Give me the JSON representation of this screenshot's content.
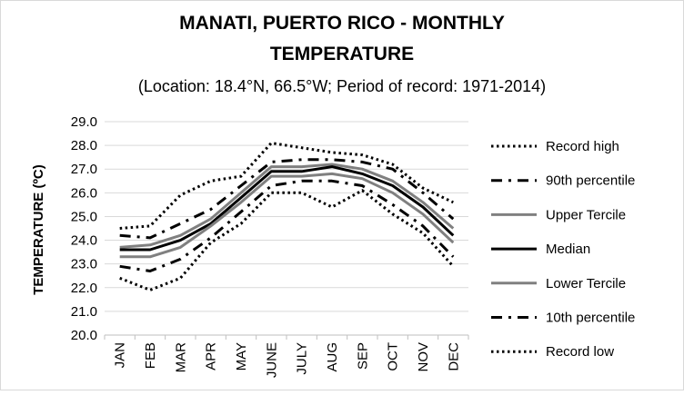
{
  "chart_data": {
    "type": "line",
    "title_line1": "MANATI, PUERTO RICO - MONTHLY",
    "title_line2": "TEMPERATURE",
    "subtitle": "(Location: 18.4°N, 66.5°W; Period of record: 1971-2014)",
    "ylabel": "TEMPERATURE (ºC)",
    "xlabel": "",
    "categories": [
      "JAN",
      "FEB",
      "MAR",
      "APR",
      "MAY",
      "JUNE",
      "JULY",
      "AUG",
      "SEP",
      "OCT",
      "NOV",
      "DEC"
    ],
    "ylim": [
      20.0,
      29.0
    ],
    "yticks": [
      "20.0",
      "21.0",
      "22.0",
      "23.0",
      "24.0",
      "25.0",
      "26.0",
      "27.0",
      "28.0",
      "29.0"
    ],
    "grid": true,
    "legend_position": "right",
    "series": [
      {
        "name": "Record high",
        "style": "dotted",
        "color": "#000000",
        "values": [
          24.5,
          24.6,
          25.9,
          26.5,
          26.7,
          28.1,
          27.9,
          27.7,
          27.6,
          27.2,
          26.2,
          25.6
        ]
      },
      {
        "name": "90th percentile",
        "style": "dashdot",
        "color": "#000000",
        "values": [
          24.2,
          24.1,
          24.7,
          25.3,
          26.3,
          27.3,
          27.4,
          27.4,
          27.3,
          27.0,
          26.0,
          24.9
        ]
      },
      {
        "name": "Upper Tercile",
        "style": "solid",
        "color": "#808080",
        "values": [
          23.7,
          23.8,
          24.2,
          24.9,
          26.0,
          27.1,
          27.1,
          27.2,
          27.0,
          26.5,
          25.6,
          24.5
        ]
      },
      {
        "name": "Median",
        "style": "solid",
        "color": "#000000",
        "values": [
          23.6,
          23.6,
          24.0,
          24.7,
          25.8,
          26.9,
          26.9,
          27.1,
          26.8,
          26.3,
          25.4,
          24.2
        ]
      },
      {
        "name": "Lower Tercile",
        "style": "solid",
        "color": "#808080",
        "values": [
          23.3,
          23.3,
          23.7,
          24.6,
          25.6,
          26.7,
          26.7,
          26.8,
          26.6,
          26.0,
          25.1,
          23.9
        ]
      },
      {
        "name": "10th percentile",
        "style": "dashdot",
        "color": "#000000",
        "values": [
          22.9,
          22.7,
          23.2,
          24.1,
          25.2,
          26.3,
          26.5,
          26.5,
          26.3,
          25.5,
          24.6,
          23.3
        ]
      },
      {
        "name": "Record low",
        "style": "dotted",
        "color": "#000000",
        "values": [
          22.4,
          21.9,
          22.4,
          23.9,
          24.7,
          26.0,
          26.0,
          25.4,
          26.1,
          25.1,
          24.3,
          22.9
        ]
      }
    ]
  }
}
